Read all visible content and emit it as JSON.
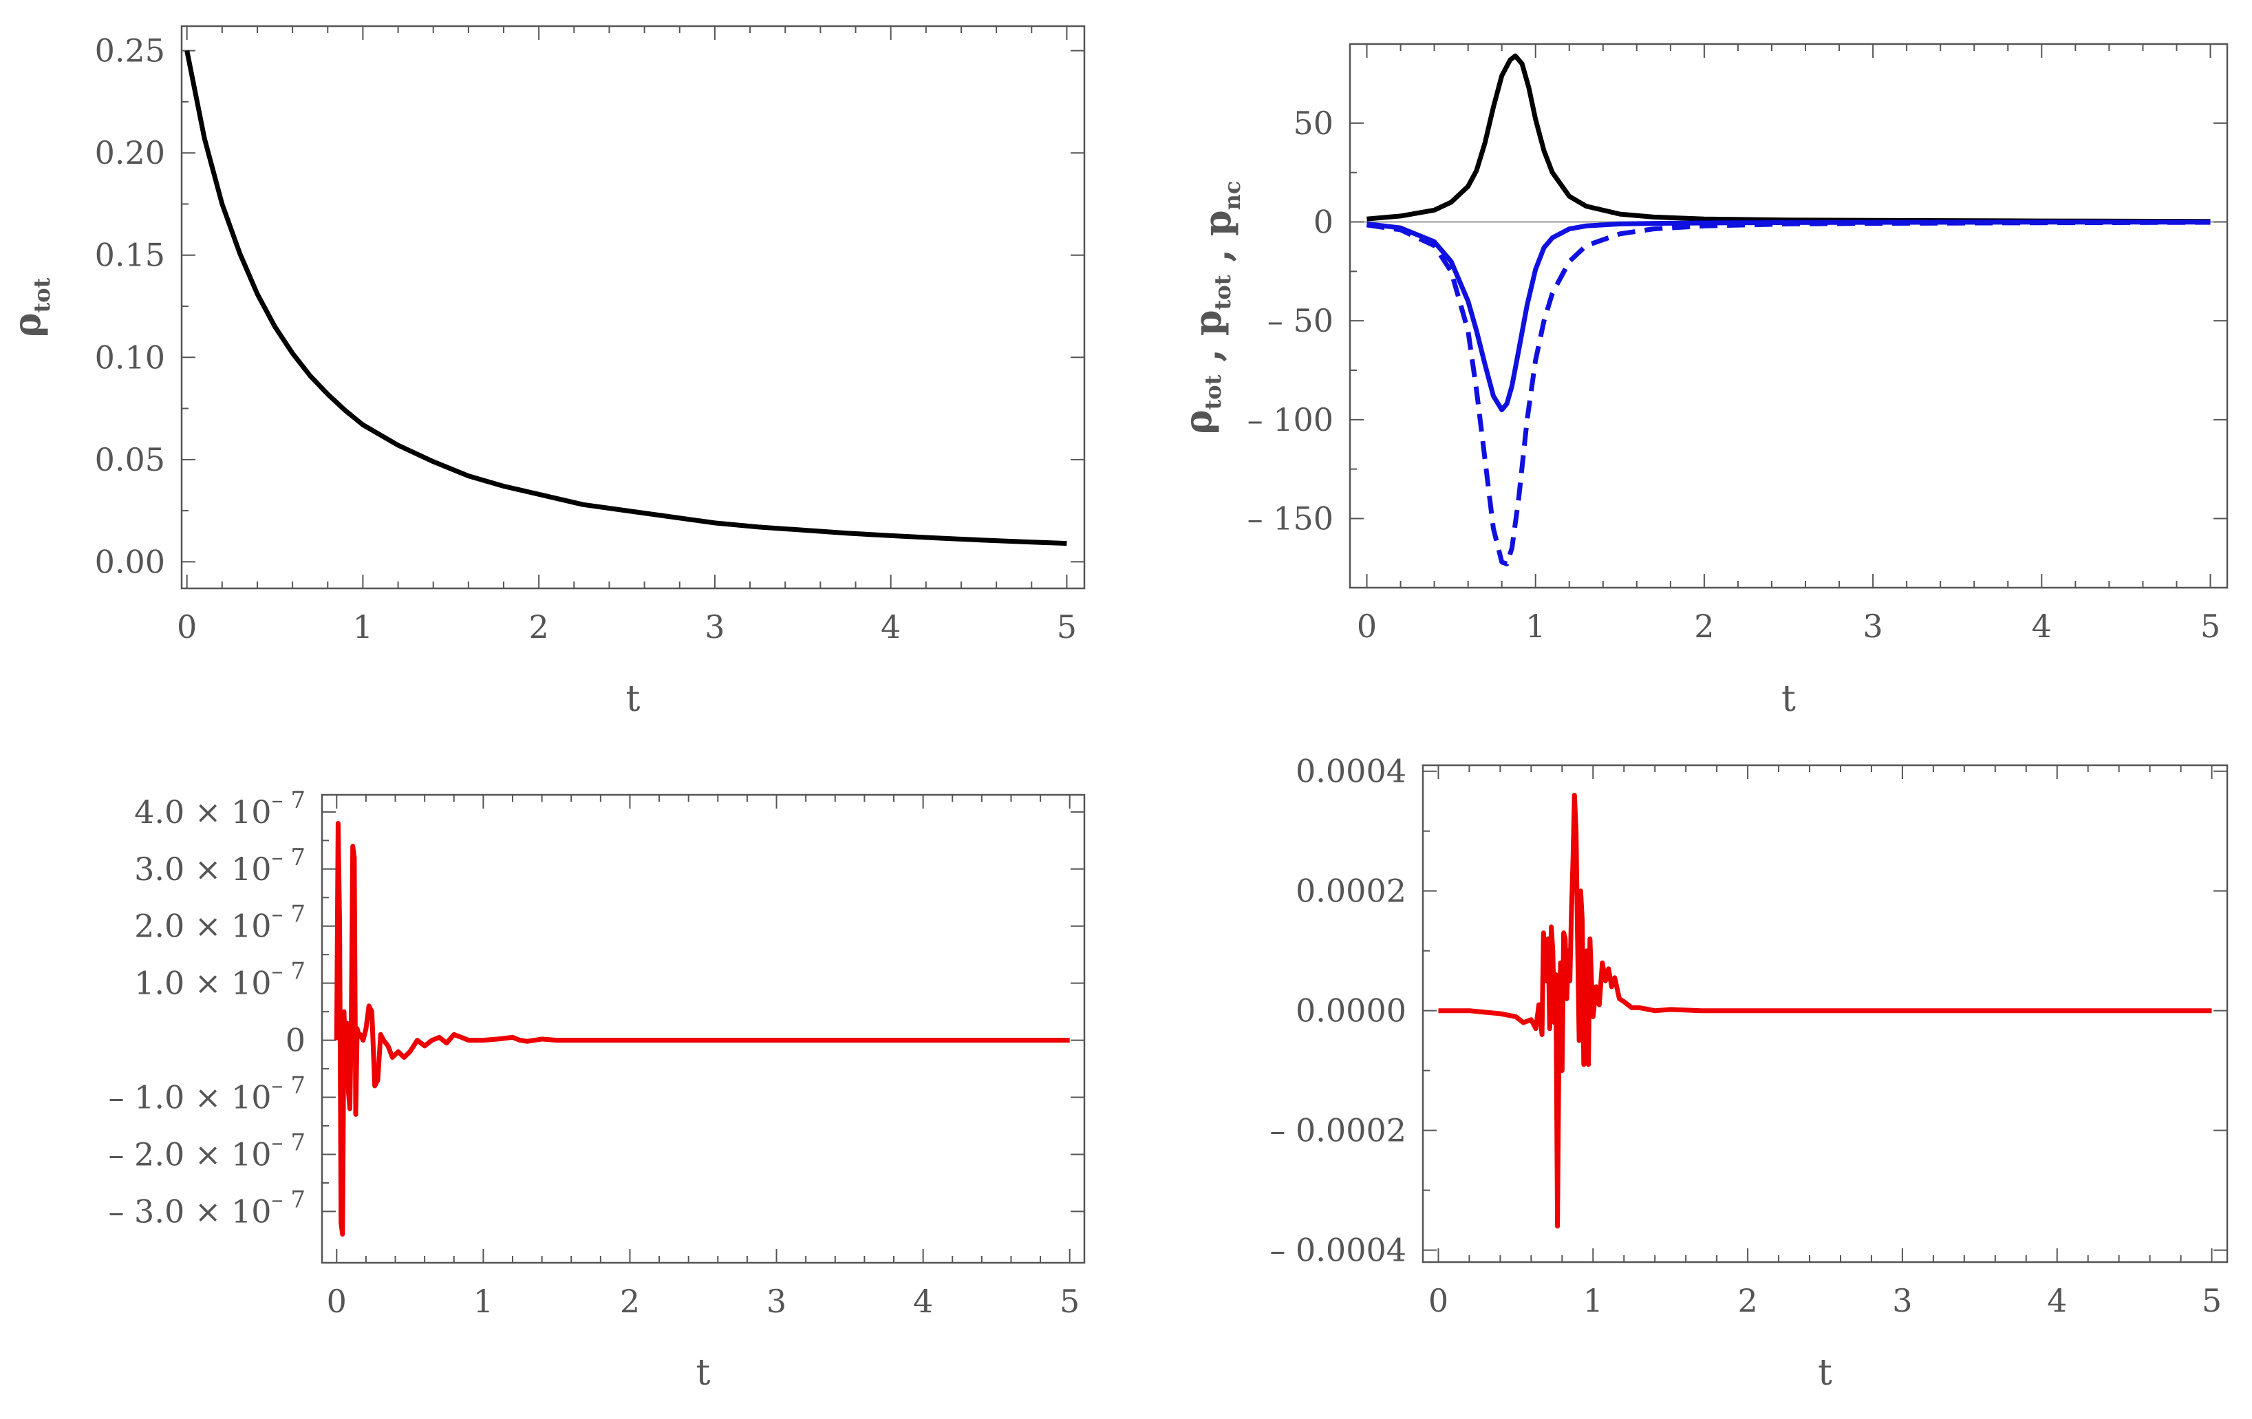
{
  "chart_data": [
    {
      "type": "line",
      "title": "",
      "xlabel": "t",
      "ylabel": "ρ",
      "ylabel_sub": "tot",
      "xlim": [
        -0.03,
        5.1
      ],
      "ylim": [
        -0.013,
        0.262
      ],
      "xticks": [
        0,
        1,
        2,
        3,
        4,
        5
      ],
      "xtick_labels": [
        "0",
        "1",
        "2",
        "3",
        "4",
        "5"
      ],
      "yticks": [
        0,
        0.05,
        0.1,
        0.15,
        0.2,
        0.25
      ],
      "ytick_labels": [
        "0.00",
        "0.05",
        "0.10",
        "0.15",
        "0.20",
        "0.25"
      ],
      "series": [
        {
          "name": "rho_tot",
          "color": "#000000",
          "dash": "solid",
          "x": [
            0,
            0.1,
            0.2,
            0.3,
            0.4,
            0.5,
            0.6,
            0.7,
            0.8,
            0.9,
            1.0,
            1.2,
            1.4,
            1.6,
            1.8,
            2.0,
            2.25,
            2.5,
            2.75,
            3.0,
            3.25,
            3.5,
            3.75,
            4.0,
            4.25,
            4.5,
            4.75,
            5.0
          ],
          "y": [
            0.25,
            0.207,
            0.175,
            0.151,
            0.131,
            0.115,
            0.102,
            0.091,
            0.082,
            0.074,
            0.067,
            0.057,
            0.049,
            0.042,
            0.037,
            0.033,
            0.028,
            0.025,
            0.022,
            0.019,
            0.017,
            0.0155,
            0.014,
            0.0128,
            0.0117,
            0.0107,
            0.0098,
            0.009
          ]
        }
      ]
    },
    {
      "type": "line",
      "title": "",
      "xlabel": "t",
      "ylabel_parts": [
        {
          "base": "ρ",
          "sub": "tot"
        },
        {
          "base": " , p",
          "sub": "tot"
        },
        {
          "base": " , p",
          "sub": "nc"
        }
      ],
      "xlim": [
        -0.1,
        5.1
      ],
      "ylim": [
        -185,
        90
      ],
      "xticks": [
        0,
        1,
        2,
        3,
        4,
        5
      ],
      "xtick_labels": [
        "0",
        "1",
        "2",
        "3",
        "4",
        "5"
      ],
      "yticks": [
        50,
        0,
        -50,
        -100,
        -150
      ],
      "ytick_labels": [
        "50",
        "0",
        "– 50",
        "– 100",
        "– 150"
      ],
      "zero_line": true,
      "series": [
        {
          "name": "rho_tot",
          "color": "#000000",
          "dash": "solid",
          "x": [
            0,
            0.2,
            0.4,
            0.5,
            0.6,
            0.65,
            0.7,
            0.75,
            0.8,
            0.85,
            0.88,
            0.92,
            0.96,
            1.0,
            1.05,
            1.1,
            1.2,
            1.3,
            1.5,
            1.7,
            2.0,
            2.5,
            3.0,
            4.0,
            5.0
          ],
          "y": [
            1.5,
            3,
            6,
            10,
            18,
            26,
            40,
            58,
            74,
            82,
            84,
            80,
            68,
            52,
            36,
            25,
            13,
            8,
            4,
            2.5,
            1.5,
            1,
            0.8,
            0.5,
            0.3
          ]
        },
        {
          "name": "p_tot",
          "color": "#1010e0",
          "dash": "solid",
          "x": [
            0,
            0.2,
            0.4,
            0.5,
            0.6,
            0.65,
            0.7,
            0.75,
            0.8,
            0.83,
            0.86,
            0.9,
            0.95,
            1.0,
            1.05,
            1.1,
            1.2,
            1.3,
            1.5,
            1.7,
            2.0,
            2.5,
            3.0,
            4.0,
            5.0
          ],
          "y": [
            -1,
            -3,
            -10,
            -20,
            -40,
            -55,
            -72,
            -88,
            -95,
            -92,
            -83,
            -65,
            -42,
            -24,
            -13,
            -8,
            -3.5,
            -2,
            -1,
            -0.7,
            -0.5,
            -0.3,
            -0.2,
            -0.1,
            -0.1
          ]
        },
        {
          "name": "p_nc",
          "color": "#1010e0",
          "dash": "dashed",
          "x": [
            0,
            0.2,
            0.4,
            0.5,
            0.6,
            0.65,
            0.7,
            0.75,
            0.8,
            0.83,
            0.86,
            0.9,
            0.95,
            1.0,
            1.05,
            1.1,
            1.2,
            1.3,
            1.5,
            1.7,
            2.0,
            2.5,
            3.0,
            4.0,
            5.0
          ],
          "y": [
            -1.5,
            -4,
            -12,
            -25,
            -55,
            -85,
            -120,
            -155,
            -172,
            -173,
            -165,
            -140,
            -100,
            -70,
            -50,
            -36,
            -20,
            -12,
            -6,
            -3.5,
            -2,
            -1,
            -0.7,
            -0.4,
            -0.2
          ]
        }
      ]
    },
    {
      "type": "line",
      "title": "",
      "xlabel": "t",
      "ylabel": "",
      "xlim": [
        -0.1,
        5.1
      ],
      "ylim": [
        -3.9e-07,
        4.3e-07
      ],
      "xticks": [
        0,
        1,
        2,
        3,
        4,
        5
      ],
      "xtick_labels": [
        "0",
        "1",
        "2",
        "3",
        "4",
        "5"
      ],
      "yticks": [
        4e-07,
        3e-07,
        2e-07,
        1e-07,
        0,
        -1e-07,
        -2e-07,
        -3e-07
      ],
      "ytick_labels": [
        {
          "mant": "4.0 × 10",
          "exp": "– 7"
        },
        {
          "mant": "3.0 × 10",
          "exp": "– 7"
        },
        {
          "mant": "2.0 × 10",
          "exp": "– 7"
        },
        {
          "mant": "1.0 × 10",
          "exp": "– 7"
        },
        {
          "mant": "0",
          "exp": ""
        },
        {
          "mant": "– 1.0 × 10",
          "exp": "– 7"
        },
        {
          "mant": "– 2.0 × 10",
          "exp": "– 7"
        },
        {
          "mant": "– 3.0 × 10",
          "exp": "– 7"
        }
      ],
      "series": [
        {
          "name": "residual_1",
          "color": "#ee0000",
          "dash": "solid",
          "x": [
            0,
            0.01,
            0.02,
            0.03,
            0.04,
            0.05,
            0.06,
            0.07,
            0.08,
            0.09,
            0.1,
            0.11,
            0.12,
            0.13,
            0.14,
            0.15,
            0.16,
            0.18,
            0.2,
            0.22,
            0.24,
            0.26,
            0.28,
            0.3,
            0.32,
            0.35,
            0.38,
            0.42,
            0.46,
            0.5,
            0.55,
            0.6,
            0.65,
            0.7,
            0.75,
            0.8,
            0.85,
            0.9,
            1.0,
            1.1,
            1.2,
            1.25,
            1.3,
            1.4,
            1.5,
            1.6,
            1.8,
            2.0,
            2.5,
            3.0,
            4.0,
            5.0
          ],
          "y": [
            0,
            3.8e-07,
            2e-07,
            -3.2e-07,
            -3.4e-07,
            5e-08,
            -5e-08,
            3e-08,
            -9e-08,
            -1.2e-07,
            4e-08,
            3.4e-07,
            3.2e-07,
            -1.3e-07,
            2e-08,
            1e-08,
            1e-08,
            0,
            2e-08,
            6e-08,
            5e-08,
            -8e-08,
            -7e-08,
            1e-08,
            0,
            -1e-08,
            -3e-08,
            -2e-08,
            -3e-08,
            -2e-08,
            0,
            -1e-08,
            0,
            5e-09,
            -5e-09,
            1e-08,
            5e-09,
            0,
            0,
            2e-09,
            5e-09,
            0,
            -2e-09,
            2e-09,
            0,
            0,
            0,
            0,
            0,
            0,
            0,
            0
          ]
        }
      ]
    },
    {
      "type": "line",
      "title": "",
      "xlabel": "t",
      "ylabel": "",
      "xlim": [
        -0.1,
        5.1
      ],
      "ylim": [
        -0.00042,
        0.00041
      ],
      "xticks": [
        0,
        1,
        2,
        3,
        4,
        5
      ],
      "xtick_labels": [
        "0",
        "1",
        "2",
        "3",
        "4",
        "5"
      ],
      "yticks": [
        0.0004,
        0.0002,
        0,
        -0.0002,
        -0.0004
      ],
      "ytick_labels": [
        "0.0004",
        "0.0002",
        "0.0000",
        "– 0.0002",
        "– 0.0004"
      ],
      "series": [
        {
          "name": "residual_2",
          "color": "#ee0000",
          "dash": "solid",
          "x": [
            0,
            0.2,
            0.4,
            0.5,
            0.55,
            0.6,
            0.63,
            0.65,
            0.67,
            0.68,
            0.7,
            0.71,
            0.72,
            0.73,
            0.74,
            0.75,
            0.76,
            0.77,
            0.78,
            0.79,
            0.8,
            0.81,
            0.82,
            0.83,
            0.84,
            0.85,
            0.86,
            0.87,
            0.88,
            0.89,
            0.9,
            0.91,
            0.92,
            0.93,
            0.94,
            0.95,
            0.96,
            0.97,
            0.98,
            0.99,
            1.0,
            1.02,
            1.04,
            1.06,
            1.08,
            1.1,
            1.12,
            1.14,
            1.17,
            1.2,
            1.25,
            1.3,
            1.4,
            1.5,
            1.7,
            2.0,
            2.5,
            3.0,
            4.0,
            5.0
          ],
          "y": [
            0,
            0,
            -5e-06,
            -1e-05,
            -2e-05,
            -1.5e-05,
            -3e-05,
            1e-05,
            -4e-05,
            0.00013,
            5e-05,
            0.00012,
            -3e-05,
            0.00014,
            0.0001,
            -2e-05,
            6e-05,
            -0.00036,
            -5e-05,
            8e-05,
            -0.0001,
            0.00013,
            0.00012,
            2e-05,
            0.0001,
            5e-05,
            0.00016,
            0.00025,
            0.00036,
            0.0003,
            0.00012,
            -5e-05,
            0.0002,
            0.00015,
            -9e-05,
            2e-05,
            0.0001,
            -9e-05,
            0.00012,
            5e-05,
            -1e-05,
            4e-05,
            1e-05,
            8e-05,
            5e-05,
            7e-05,
            4e-05,
            5.5e-05,
            2e-05,
            1.5e-05,
            5e-06,
            5e-06,
            0,
            2e-06,
            0,
            0,
            0,
            0,
            0,
            0
          ]
        }
      ]
    }
  ]
}
